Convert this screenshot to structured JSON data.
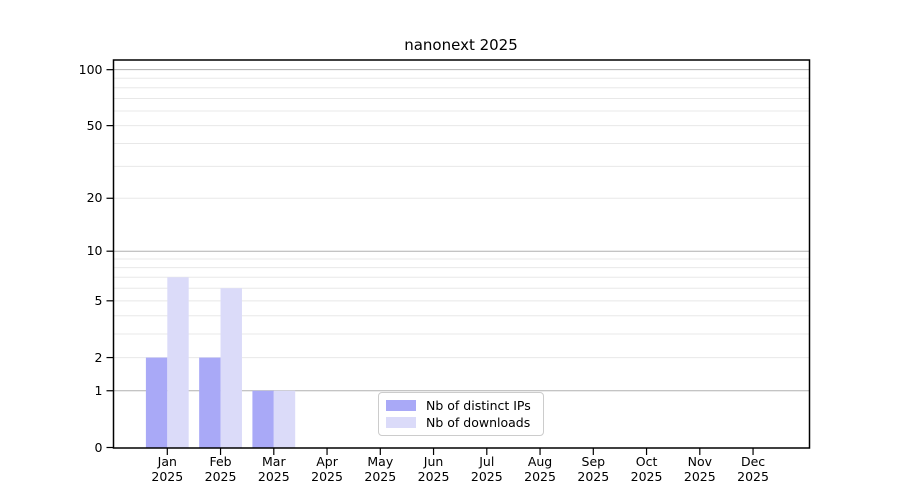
{
  "chart_data": {
    "type": "bar",
    "title": "nanonext 2025",
    "x_categories": [
      "Jan 2025",
      "Feb 2025",
      "Mar 2025",
      "Apr 2025",
      "May 2025",
      "Jun 2025",
      "Jul 2025",
      "Aug 2025",
      "Sep 2025",
      "Oct 2025",
      "Nov 2025",
      "Dec 2025"
    ],
    "x_tick_months": [
      "Jan",
      "Feb",
      "Mar",
      "Apr",
      "May",
      "Jun",
      "Jul",
      "Aug",
      "Sep",
      "Oct",
      "Nov",
      "Dec"
    ],
    "x_tick_year": "2025",
    "series": [
      {
        "name": "Nb of distinct IPs",
        "color": "#a9a9f7",
        "values": [
          2,
          2,
          1,
          0,
          0,
          0,
          0,
          0,
          0,
          0,
          0,
          0
        ]
      },
      {
        "name": "Nb of downloads",
        "color": "#dbdbf9",
        "values": [
          7,
          6,
          1,
          0,
          0,
          0,
          0,
          0,
          0,
          0,
          0,
          0
        ]
      }
    ],
    "xlabel": "",
    "ylabel": "",
    "y_scale": "log1p",
    "ylim": [
      0,
      115
    ],
    "y_tick_values": [
      0,
      1,
      2,
      5,
      10,
      20,
      50,
      100
    ],
    "y_tick_labels": [
      "0",
      "1",
      "2",
      "5",
      "10",
      "20",
      "50",
      "100"
    ],
    "major_grid_values": [
      1,
      10,
      100
    ],
    "minor_grid_values": [
      2,
      3,
      4,
      5,
      6,
      7,
      8,
      9,
      20,
      30,
      40,
      50,
      60,
      70,
      80,
      90
    ],
    "grid": "horizontal, on",
    "legend_position": "lower center inside plot",
    "colors": {
      "axis_spine": "#000000",
      "major_grid": "#b0b0b0",
      "minor_grid": "#e8e8e8",
      "background": "#ffffff",
      "text": "#000000"
    }
  }
}
